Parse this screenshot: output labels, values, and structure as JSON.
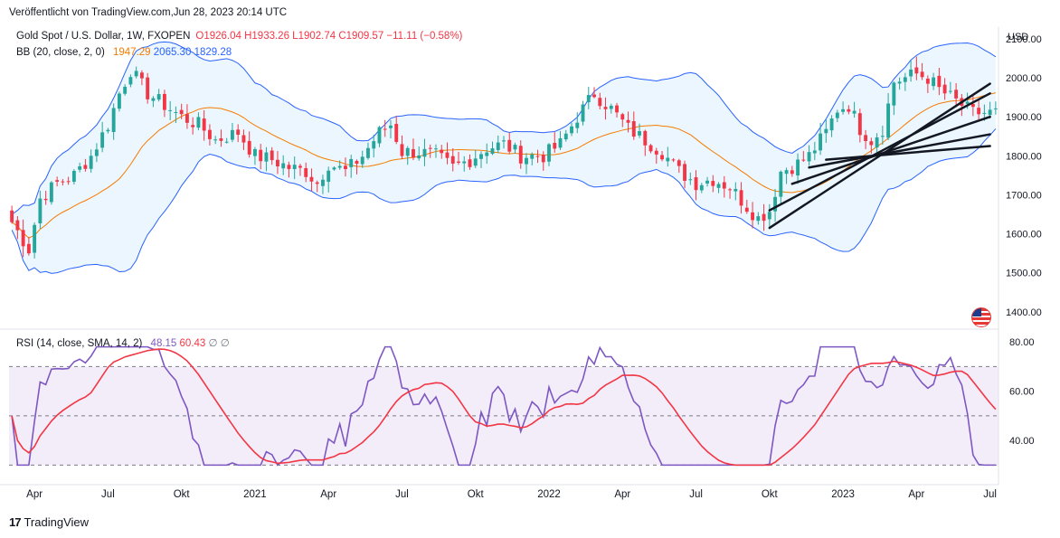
{
  "published_note": "Veröffentlicht von TradingView.com,Jun 28, 2023 20:14 UTC",
  "legend": {
    "symbol": "Gold Spot / U.S. Dollar, 1W, FXOPEN",
    "open": "O1926.04",
    "high": "H1933.26",
    "low": "L1902.74",
    "close": "C1909.57",
    "change": "−11.11 (−0.58%)",
    "bb_label": "BB (20, close, 2, 0)",
    "bb_basis": "1947.29",
    "bb_upper": "2065.30",
    "bb_lower": "1829.28",
    "rsi_label": "RSI (14, close, SMA, 14, 2)",
    "rsi_value": "48.15",
    "rsi_ma": "60.43",
    "na1": "∅",
    "na2": "∅"
  },
  "brand": {
    "mark": "17",
    "name": "TradingView"
  },
  "colors": {
    "up": "#26a69a",
    "down": "#f23645",
    "bb_basis": "#f57c00",
    "bb_band": "#2962ff",
    "bb_fill": "#e3f2fd",
    "rsi": "#7e57c2",
    "rsi_ma": "#f23645",
    "rsi_fill": "#ede7f6"
  },
  "chart_data": {
    "type": "candlestick",
    "symbol": "Gold Spot / U.S. Dollar",
    "interval": "1W",
    "price_axis_label": "USD",
    "price_ticks": [
      1400,
      1500,
      1600,
      1700,
      1800,
      1900,
      2000,
      2100
    ],
    "price_tick_labels": [
      "1400.00",
      "1500.00",
      "1600.00",
      "1700.00",
      "1800.00",
      "1900.00",
      "2000.00",
      "2100.00"
    ],
    "ylim": [
      1360,
      2130
    ],
    "x_ticks": [
      "Apr",
      "Jul",
      "Okt",
      "2021",
      "Apr",
      "Jul",
      "Okt",
      "2022",
      "Apr",
      "Jul",
      "Okt",
      "2023",
      "Apr",
      "Jul"
    ],
    "x_tick_weeks": [
      4,
      17,
      30,
      43,
      56,
      69,
      82,
      95,
      108,
      121,
      134,
      147,
      160,
      173
    ],
    "close_keypoints": [
      [
        0,
        1630
      ],
      [
        3,
        1560
      ],
      [
        5,
        1690
      ],
      [
        8,
        1730
      ],
      [
        11,
        1750
      ],
      [
        14,
        1800
      ],
      [
        17,
        1880
      ],
      [
        19,
        1960
      ],
      [
        21,
        2020
      ],
      [
        24,
        1960
      ],
      [
        27,
        1930
      ],
      [
        30,
        1900
      ],
      [
        33,
        1880
      ],
      [
        36,
        1840
      ],
      [
        40,
        1860
      ],
      [
        43,
        1800
      ],
      [
        46,
        1790
      ],
      [
        49,
        1770
      ],
      [
        52,
        1760
      ],
      [
        54,
        1730
      ],
      [
        56,
        1780
      ],
      [
        59,
        1760
      ],
      [
        62,
        1800
      ],
      [
        65,
        1860
      ],
      [
        67,
        1880
      ],
      [
        69,
        1810
      ],
      [
        72,
        1810
      ],
      [
        75,
        1800
      ],
      [
        78,
        1770
      ],
      [
        81,
        1790
      ],
      [
        84,
        1820
      ],
      [
        87,
        1830
      ],
      [
        90,
        1800
      ],
      [
        94,
        1800
      ],
      [
        97,
        1830
      ],
      [
        100,
        1900
      ],
      [
        103,
        1960
      ],
      [
        106,
        1920
      ],
      [
        109,
        1870
      ],
      [
        112,
        1840
      ],
      [
        115,
        1810
      ],
      [
        118,
        1760
      ],
      [
        121,
        1730
      ],
      [
        124,
        1740
      ],
      [
        127,
        1720
      ],
      [
        130,
        1670
      ],
      [
        132,
        1640
      ],
      [
        134,
        1660
      ],
      [
        136,
        1760
      ],
      [
        139,
        1780
      ],
      [
        141,
        1800
      ],
      [
        144,
        1860
      ],
      [
        146,
        1920
      ],
      [
        148,
        1930
      ],
      [
        150,
        1870
      ],
      [
        152,
        1840
      ],
      [
        154,
        1870
      ],
      [
        156,
        1990
      ],
      [
        158,
        2000
      ],
      [
        160,
        2010
      ],
      [
        162,
        2000
      ],
      [
        164,
        1970
      ],
      [
        166,
        1950
      ],
      [
        169,
        1920
      ],
      [
        170,
        1910
      ]
    ],
    "trendlines": [
      {
        "from": [
          134,
          1615
        ],
        "to": [
          173,
          1985
        ]
      },
      {
        "from": [
          134,
          1660
        ],
        "to": [
          173,
          1960
        ]
      },
      {
        "from": [
          138,
          1728
        ],
        "to": [
          173,
          1900
        ]
      },
      {
        "from": [
          141,
          1770
        ],
        "to": [
          173,
          1855
        ]
      },
      {
        "from": [
          144,
          1790
        ],
        "to": [
          173,
          1825
        ]
      }
    ],
    "bollinger_bands": {
      "period": 20,
      "basis": 1947.29,
      "upper": 2065.3,
      "lower": 1829.28
    },
    "rsi": {
      "period": 14,
      "value": 48.15,
      "ma_value": 60.43,
      "ticks": [
        40,
        60,
        80
      ],
      "tick_labels": [
        "40.00",
        "60.00",
        "80.00"
      ],
      "ylim": [
        25,
        83
      ],
      "upper_band": 70,
      "middle_band": 50,
      "lower_band": 30
    }
  }
}
